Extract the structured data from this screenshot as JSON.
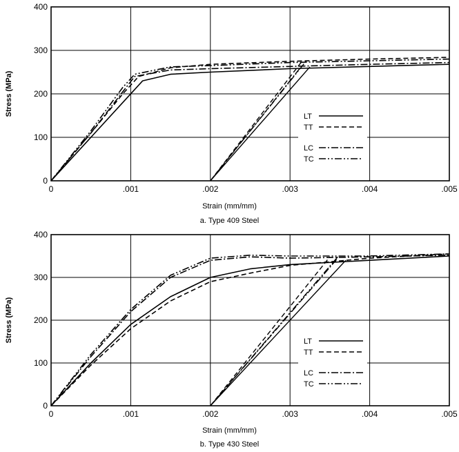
{
  "chart_data": [
    {
      "type": "line",
      "caption": "a.  Type 409 Steel",
      "xlabel": "Strain (mm/mm)",
      "ylabel": "Stress (MPa)",
      "xlim": [
        0,
        0.005
      ],
      "ylim": [
        0,
        400
      ],
      "xticks": [
        0,
        0.001,
        0.002,
        0.003,
        0.004,
        0.005
      ],
      "xtick_labels": [
        "0",
        ".001",
        ".002",
        ".003",
        ".004",
        ".005"
      ],
      "yticks": [
        0,
        100,
        200,
        300,
        400
      ],
      "ytick_labels": [
        "0",
        "100",
        "200",
        "300",
        "400"
      ],
      "grid": true,
      "legend_position": "lower-right",
      "series": [
        {
          "name": "LT",
          "style": "solid",
          "points": [
            [
              0,
              0
            ],
            [
              0.0005,
              100
            ],
            [
              0.00095,
              190
            ],
            [
              0.00115,
              230
            ],
            [
              0.0015,
              245
            ],
            [
              0.002,
              250
            ],
            [
              0.003,
              258
            ],
            [
              0.004,
              263
            ],
            [
              0.005,
              268
            ]
          ],
          "unload_points": [
            [
              0.002,
              0
            ],
            [
              0.00325,
              262
            ]
          ]
        },
        {
          "name": "TT",
          "style": "dashed",
          "points": [
            [
              0,
              0
            ],
            [
              0.0005,
              110
            ],
            [
              0.0009,
              200
            ],
            [
              0.0011,
              240
            ],
            [
              0.0015,
              260
            ],
            [
              0.002,
              268
            ],
            [
              0.003,
              275
            ],
            [
              0.004,
              280
            ],
            [
              0.005,
              284
            ]
          ],
          "unload_points": [
            [
              0.002,
              0
            ],
            [
              0.00315,
              275
            ]
          ]
        },
        {
          "name": "LC",
          "style": "dashdot",
          "points": [
            [
              0,
              0
            ],
            [
              0.0005,
              110
            ],
            [
              0.0009,
              205
            ],
            [
              0.00105,
              240
            ],
            [
              0.0015,
              255
            ],
            [
              0.002,
              258
            ],
            [
              0.003,
              263
            ],
            [
              0.004,
              268
            ],
            [
              0.005,
              272
            ]
          ],
          "unload_points": [
            [
              0.002,
              0
            ],
            [
              0.00315,
              265
            ]
          ]
        },
        {
          "name": "TC",
          "style": "dashdotdot",
          "points": [
            [
              0,
              0
            ],
            [
              0.0005,
              115
            ],
            [
              0.0009,
              215
            ],
            [
              0.00105,
              245
            ],
            [
              0.0015,
              262
            ],
            [
              0.002,
              265
            ],
            [
              0.003,
              272
            ],
            [
              0.004,
              276
            ],
            [
              0.005,
              280
            ]
          ],
          "unload_points": [
            [
              0.002,
              0
            ],
            [
              0.0032,
              275
            ]
          ]
        }
      ]
    },
    {
      "type": "line",
      "caption": "b.  Type 430 Steel",
      "xlabel": "Strain (mm/mm)",
      "ylabel": "Stress (MPa)",
      "xlim": [
        0,
        0.005
      ],
      "ylim": [
        0,
        400
      ],
      "xticks": [
        0,
        0.001,
        0.002,
        0.003,
        0.004,
        0.005
      ],
      "xtick_labels": [
        "0",
        ".001",
        ".002",
        ".003",
        ".004",
        ".005"
      ],
      "yticks": [
        0,
        100,
        200,
        300,
        400
      ],
      "ytick_labels": [
        "0",
        "100",
        "200",
        "300",
        "400"
      ],
      "grid": true,
      "legend_position": "lower-right",
      "series": [
        {
          "name": "LT",
          "style": "solid",
          "points": [
            [
              0,
              0
            ],
            [
              0.0005,
              100
            ],
            [
              0.001,
              190
            ],
            [
              0.0015,
              255
            ],
            [
              0.002,
              300
            ],
            [
              0.0025,
              320
            ],
            [
              0.003,
              330
            ],
            [
              0.004,
              340
            ],
            [
              0.005,
              350
            ]
          ],
          "unload_points": [
            [
              0.002,
              0
            ],
            [
              0.0037,
              340
            ]
          ]
        },
        {
          "name": "TT",
          "style": "dashed",
          "points": [
            [
              0,
              0
            ],
            [
              0.0005,
              95
            ],
            [
              0.001,
              180
            ],
            [
              0.0015,
              245
            ],
            [
              0.002,
              290
            ],
            [
              0.0025,
              310
            ],
            [
              0.003,
              328
            ],
            [
              0.004,
              345
            ],
            [
              0.005,
              355
            ]
          ],
          "unload_points": [
            [
              0.002,
              0
            ],
            [
              0.0035,
              348
            ]
          ]
        },
        {
          "name": "LC",
          "style": "dashdot",
          "points": [
            [
              0,
              0
            ],
            [
              0.0005,
              115
            ],
            [
              0.001,
              220
            ],
            [
              0.0015,
              300
            ],
            [
              0.002,
              340
            ],
            [
              0.0025,
              348
            ],
            [
              0.003,
              345
            ],
            [
              0.004,
              348
            ],
            [
              0.005,
              352
            ]
          ],
          "unload_points": [
            [
              0.002,
              0
            ],
            [
              0.0036,
              345
            ]
          ]
        },
        {
          "name": "TC",
          "style": "dashdotdot",
          "points": [
            [
              0,
              0
            ],
            [
              0.0005,
              120
            ],
            [
              0.001,
              225
            ],
            [
              0.0015,
              305
            ],
            [
              0.002,
              345
            ],
            [
              0.0025,
              352
            ],
            [
              0.003,
              350
            ],
            [
              0.004,
              350
            ],
            [
              0.005,
              355
            ]
          ],
          "unload_points": [
            [
              0.002,
              0
            ],
            [
              0.0036,
              348
            ]
          ]
        }
      ]
    }
  ]
}
